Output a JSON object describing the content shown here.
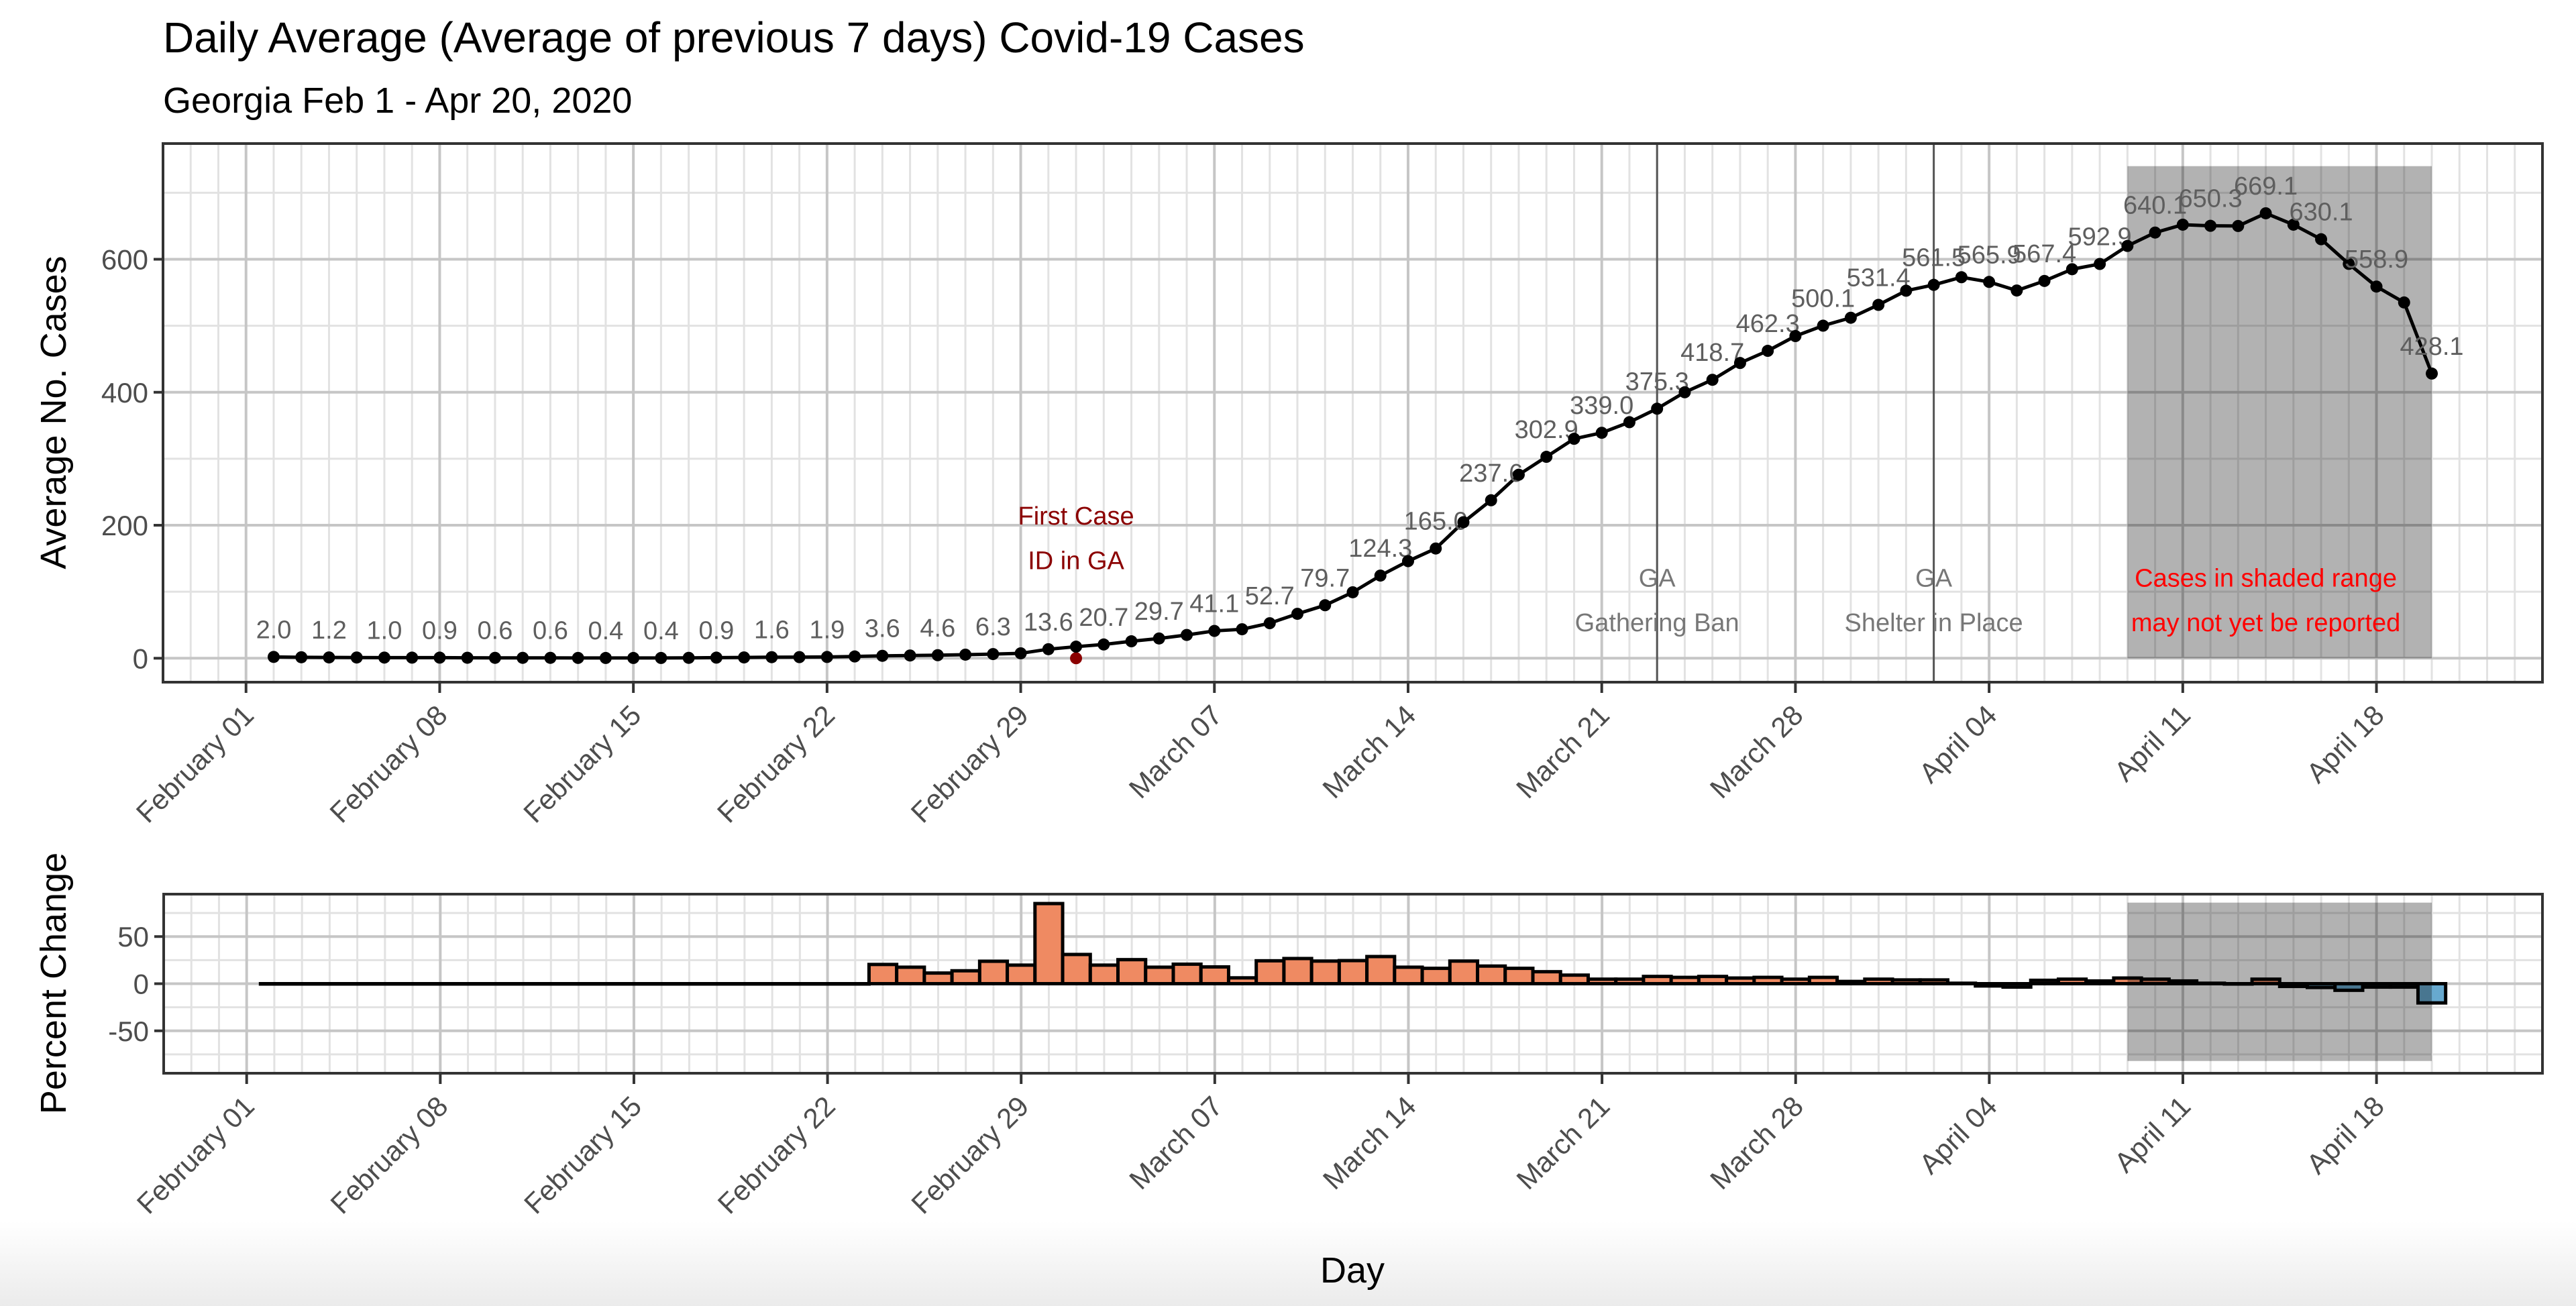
{
  "title": "Daily Average (Average of previous 7 days) Covid-19 Cases",
  "subtitle": "Georgia Feb 1 - Apr 20, 2020",
  "x_axis_title": "Day",
  "x_ticks": [
    "2020-02-01",
    "2020-02-08",
    "2020-02-15",
    "2020-02-22",
    "2020-02-29",
    "2020-03-07",
    "2020-03-14",
    "2020-03-21",
    "2020-03-28",
    "2020-04-04",
    "2020-04-11",
    "2020-04-18"
  ],
  "x_tick_labels": [
    "February 01",
    "February 08",
    "February 15",
    "February 22",
    "February 29",
    "March 07",
    "March 14",
    "March 21",
    "March 28",
    "April 04",
    "April 11",
    "April 18"
  ],
  "xlim": [
    "2020-01-29",
    "2020-04-24"
  ],
  "chart_data": [
    {
      "type": "line",
      "ylabel": "Average No. Cases",
      "ylim": [
        -36,
        774
      ],
      "y_ticks": [
        0,
        200,
        400,
        600
      ],
      "grid": true,
      "line_color": "#000000",
      "x": [
        "2020-02-02",
        "2020-02-03",
        "2020-02-04",
        "2020-02-05",
        "2020-02-06",
        "2020-02-07",
        "2020-02-08",
        "2020-02-09",
        "2020-02-10",
        "2020-02-11",
        "2020-02-12",
        "2020-02-13",
        "2020-02-14",
        "2020-02-15",
        "2020-02-16",
        "2020-02-17",
        "2020-02-18",
        "2020-02-19",
        "2020-02-20",
        "2020-02-21",
        "2020-02-22",
        "2020-02-23",
        "2020-02-24",
        "2020-02-25",
        "2020-02-26",
        "2020-02-27",
        "2020-02-28",
        "2020-02-29",
        "2020-03-01",
        "2020-03-02",
        "2020-03-03",
        "2020-03-04",
        "2020-03-05",
        "2020-03-06",
        "2020-03-07",
        "2020-03-08",
        "2020-03-09",
        "2020-03-10",
        "2020-03-11",
        "2020-03-12",
        "2020-03-13",
        "2020-03-14",
        "2020-03-15",
        "2020-03-16",
        "2020-03-17",
        "2020-03-18",
        "2020-03-19",
        "2020-03-20",
        "2020-03-21",
        "2020-03-22",
        "2020-03-23",
        "2020-03-24",
        "2020-03-25",
        "2020-03-26",
        "2020-03-27",
        "2020-03-28",
        "2020-03-29",
        "2020-03-30",
        "2020-03-31",
        "2020-04-01",
        "2020-04-02",
        "2020-04-03",
        "2020-04-04",
        "2020-04-05",
        "2020-04-06",
        "2020-04-07",
        "2020-04-08",
        "2020-04-09",
        "2020-04-10",
        "2020-04-11",
        "2020-04-12",
        "2020-04-13",
        "2020-04-14",
        "2020-04-15",
        "2020-04-16",
        "2020-04-17",
        "2020-04-18",
        "2020-04-19",
        "2020-04-20"
      ],
      "values": [
        2.0,
        1.5,
        1.2,
        1.1,
        1.0,
        0.9,
        0.9,
        0.7,
        0.6,
        0.6,
        0.6,
        0.5,
        0.4,
        0.4,
        0.4,
        0.6,
        0.9,
        1.2,
        1.6,
        1.7,
        1.9,
        2.7,
        3.6,
        4.1,
        4.6,
        5.4,
        6.3,
        7.4,
        13.6,
        17.4,
        20.7,
        25.5,
        29.7,
        35.0,
        41.1,
        43.6,
        52.7,
        66.8,
        79.7,
        99.2,
        124.3,
        146.0,
        165.0,
        204.6,
        237.6,
        276.0,
        302.9,
        330.0,
        339.0,
        355.0,
        375.3,
        400.0,
        418.7,
        444.0,
        462.3,
        484.5,
        500.1,
        512.0,
        531.4,
        552.7,
        561.5,
        573.0,
        565.9,
        553.0,
        567.4,
        585.0,
        592.9,
        620.0,
        640.1,
        652.0,
        650.3,
        650.0,
        669.1,
        652.0,
        630.1,
        593.0,
        558.9,
        535.0,
        428.1
      ],
      "labeled_every": 2,
      "first_case_point": {
        "date": "2020-03-02",
        "value": 0,
        "color": "#8B0000"
      },
      "shaded_range": {
        "from": "2020-04-09",
        "to": "2020-04-20",
        "ymin": 0,
        "ymax": 740
      },
      "annotations": [
        {
          "date": "2020-03-02",
          "lines": [
            "First Case",
            "ID in GA"
          ],
          "color": "#8B0000",
          "vline": false
        },
        {
          "date": "2020-03-23",
          "lines": [
            "GA",
            "Gathering Ban"
          ],
          "color": "#777777",
          "vline": true
        },
        {
          "date": "2020-04-02",
          "lines": [
            "GA",
            "Shelter in Place"
          ],
          "color": "#777777",
          "vline": true
        },
        {
          "date": "2020-04-14",
          "lines": [
            "Cases in shaded range",
            "may not yet be reported"
          ],
          "color": "#FF0000",
          "vline": false
        }
      ]
    },
    {
      "type": "bar",
      "ylabel": "Percent Change",
      "ylim": [
        -95,
        95
      ],
      "y_ticks": [
        -50,
        0,
        50
      ],
      "grid": true,
      "positive_color": "#EF8A62",
      "negative_color": "#67A9CF",
      "shaded_range": {
        "from": "2020-04-09",
        "to": "2020-04-20",
        "ymin": -82,
        "ymax": 86
      },
      "values": [
        0,
        0,
        0,
        0,
        0,
        0,
        0,
        0,
        0,
        0,
        0,
        0,
        0,
        0,
        0,
        0,
        0,
        0,
        0,
        0,
        0,
        0,
        20.4,
        17.5,
        11.3,
        13.7,
        23.8,
        19.7,
        85.0,
        31.0,
        19.7,
        25.5,
        17.5,
        20.7,
        17.8,
        6.2,
        24.3,
        26.7,
        24.0,
        24.5,
        28.8,
        17.5,
        16.3,
        24.0,
        18.7,
        16.3,
        12.7,
        9.1,
        4.8,
        4.8,
        7.7,
        6.7,
        7.7,
        6.0,
        6.7,
        4.8,
        6.7,
        2.4,
        4.8,
        4.0,
        4.0,
        0.5,
        -2.4,
        -3.6,
        3.6,
        4.8,
        2.9,
        6.0,
        4.8,
        2.9,
        0.5,
        0.0,
        4.8,
        -2.9,
        -4.0,
        -7.0,
        -3.6,
        -3.6,
        -20.4
      ]
    }
  ]
}
